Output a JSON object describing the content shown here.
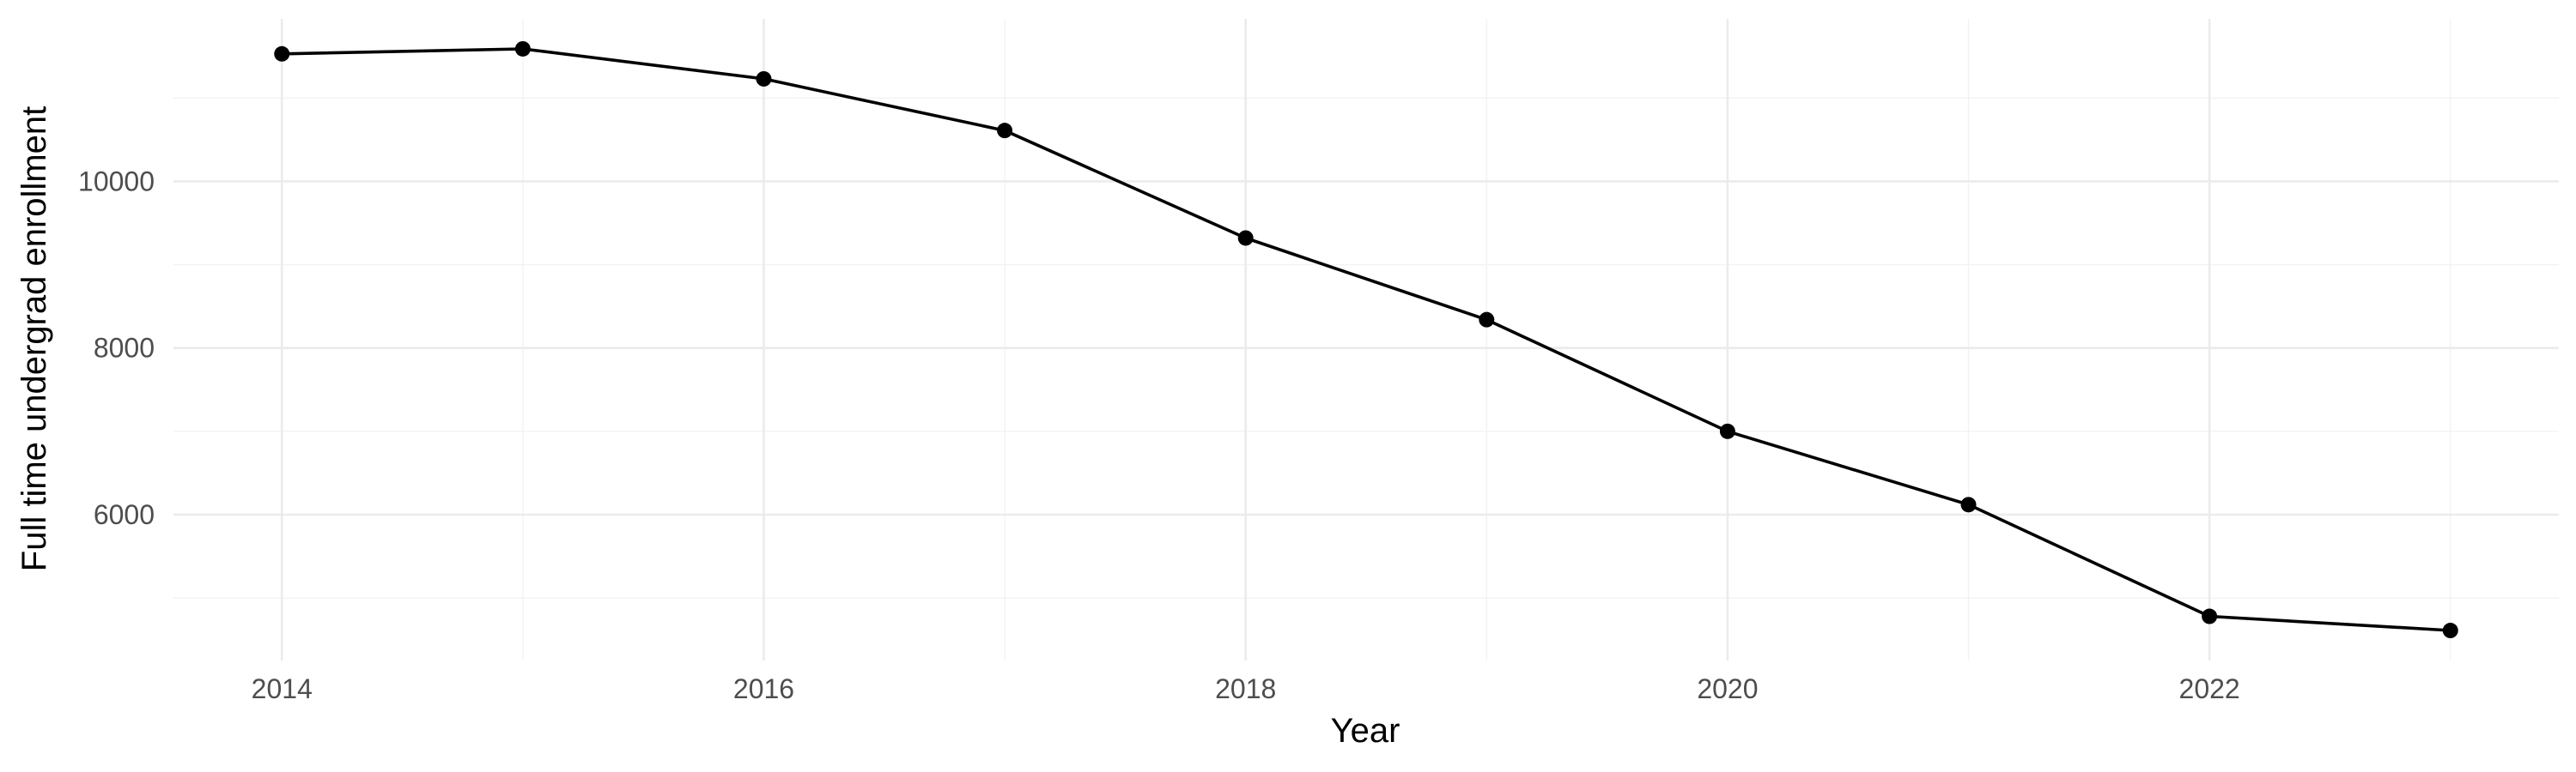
{
  "chart_data": {
    "type": "line",
    "xlabel": "Year",
    "ylabel": "Full time undergrad enrollment",
    "x": [
      2014,
      2015,
      2016,
      2017,
      2018,
      2019,
      2020,
      2021,
      2022,
      2023
    ],
    "series": [
      {
        "values": [
          11530,
          11590,
          11230,
          10610,
          9320,
          8340,
          7000,
          6120,
          4780,
          4610
        ]
      }
    ],
    "x_ticks": [
      2014,
      2016,
      2018,
      2020,
      2022
    ],
    "x_tick_labels": [
      "2014",
      "2016",
      "2018",
      "2020",
      "2022"
    ],
    "y_ticks": [
      6000,
      8000,
      10000
    ],
    "y_tick_labels": [
      "6000",
      "8000",
      "10000"
    ],
    "xlim": [
      2013.55,
      2023.45
    ],
    "ylim": [
      4250,
      11950
    ],
    "grid": true,
    "legend": "none",
    "colors": {
      "line": "#000000",
      "grid": "#ebebeb",
      "background": "#ffffff"
    }
  }
}
